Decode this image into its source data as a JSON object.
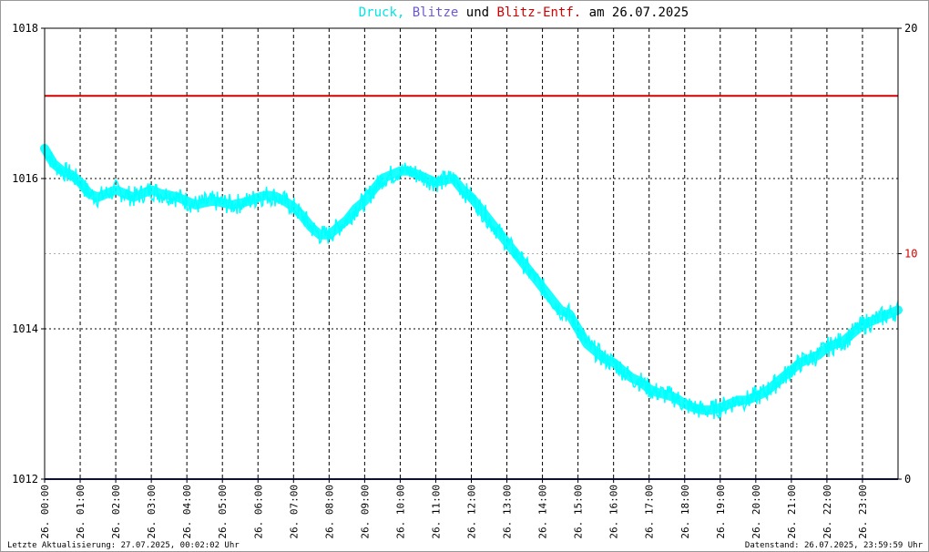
{
  "chart_data": {
    "type": "line",
    "title_parts": [
      {
        "text": "Druck,",
        "color": "#00e5e5"
      },
      {
        "text": "Blitze",
        "color": "#6a5acd"
      },
      {
        "text": "und",
        "color": "#000000"
      },
      {
        "text": "Blitz-Entf.",
        "color": "#d40000"
      },
      {
        "text": "am 26.07.2025",
        "color": "#000000"
      }
    ],
    "y_left": {
      "min": 1012,
      "max": 1018,
      "ticks": [
        "1012",
        "1014",
        "1016",
        "1018"
      ]
    },
    "y_right": {
      "min": 0,
      "max": 20,
      "ticks": [
        {
          "label": "0",
          "color": "#000000"
        },
        {
          "label": "10",
          "color": "#d40000"
        },
        {
          "label": "20",
          "color": "#000000"
        }
      ]
    },
    "x_range_hours": [
      0,
      24
    ],
    "x_ticks": [
      "26. 00:00",
      "26. 01:00",
      "26. 02:00",
      "26. 03:00",
      "26. 04:00",
      "26. 05:00",
      "26. 06:00",
      "26. 07:00",
      "26. 08:00",
      "26. 09:00",
      "26. 10:00",
      "26. 11:00",
      "26. 12:00",
      "26. 13:00",
      "26. 14:00",
      "26. 15:00",
      "26. 16:00",
      "26. 17:00",
      "26. 18:00",
      "26. 19:00",
      "26. 20:00",
      "26. 21:00",
      "26. 22:00",
      "26. 23:00"
    ],
    "series": [
      {
        "key": "druck",
        "color": "#00ffff",
        "axis": "left",
        "x": [
          0,
          0.25,
          0.5,
          0.75,
          1,
          1.25,
          1.5,
          1.75,
          2,
          2.25,
          2.5,
          2.75,
          3,
          3.25,
          3.5,
          3.75,
          4,
          4.25,
          4.5,
          4.75,
          5,
          5.25,
          5.5,
          5.75,
          6,
          6.25,
          6.5,
          6.75,
          7,
          7.25,
          7.5,
          7.75,
          8,
          8.25,
          8.5,
          8.75,
          9,
          9.25,
          9.5,
          9.75,
          10,
          10.25,
          10.5,
          10.75,
          11,
          11.25,
          11.5,
          11.75,
          12,
          12.25,
          12.5,
          12.75,
          13,
          13.25,
          13.5,
          13.75,
          14,
          14.25,
          14.5,
          14.75,
          15,
          15.25,
          15.5,
          15.75,
          16,
          16.25,
          16.5,
          16.75,
          17,
          17.25,
          17.5,
          17.75,
          18,
          18.25,
          18.5,
          18.75,
          19,
          19.25,
          19.5,
          19.75,
          20,
          20.25,
          20.5,
          20.75,
          21,
          21.25,
          21.5,
          21.75,
          22,
          22.25,
          22.5,
          22.75,
          23,
          23.25,
          23.5,
          23.75,
          24
        ],
        "values": [
          1016.4,
          1016.2,
          1016.1,
          1016.05,
          1015.95,
          1015.8,
          1015.75,
          1015.8,
          1015.85,
          1015.8,
          1015.75,
          1015.8,
          1015.85,
          1015.8,
          1015.78,
          1015.75,
          1015.7,
          1015.65,
          1015.68,
          1015.7,
          1015.68,
          1015.65,
          1015.67,
          1015.7,
          1015.75,
          1015.78,
          1015.76,
          1015.7,
          1015.62,
          1015.5,
          1015.35,
          1015.25,
          1015.25,
          1015.35,
          1015.45,
          1015.6,
          1015.7,
          1015.85,
          1016.0,
          1016.05,
          1016.1,
          1016.1,
          1016.05,
          1016.0,
          1015.95,
          1015.98,
          1016.0,
          1015.85,
          1015.75,
          1015.6,
          1015.45,
          1015.3,
          1015.15,
          1015.0,
          1014.85,
          1014.7,
          1014.55,
          1014.4,
          1014.25,
          1014.2,
          1014.0,
          1013.8,
          1013.7,
          1013.6,
          1013.55,
          1013.45,
          1013.35,
          1013.3,
          1013.2,
          1013.15,
          1013.12,
          1013.08,
          1013.0,
          1012.95,
          1012.92,
          1012.92,
          1012.95,
          1013.0,
          1013.05,
          1013.05,
          1013.1,
          1013.15,
          1013.25,
          1013.35,
          1013.45,
          1013.55,
          1013.6,
          1013.65,
          1013.75,
          1013.8,
          1013.85,
          1013.95,
          1014.05,
          1014.1,
          1014.15,
          1014.2,
          1014.25
        ]
      },
      {
        "key": "blitze",
        "color": "#1c1c7a",
        "axis": "right",
        "x": [
          0,
          24
        ],
        "values": [
          0,
          0
        ]
      },
      {
        "key": "blitz_entf",
        "color": "#d40000",
        "axis": "right",
        "x": [
          0,
          24
        ],
        "values": [
          17,
          17
        ]
      }
    ],
    "grid": true
  },
  "footer": {
    "left": "Letzte Aktualisierung: 27.07.2025, 00:02:02 Uhr",
    "right": "Datenstand: 26.07.2025, 23:59:59 Uhr"
  },
  "colors": {
    "frame": "#000000",
    "grid": "#000000",
    "minor_grid": "#b0b0b0"
  }
}
